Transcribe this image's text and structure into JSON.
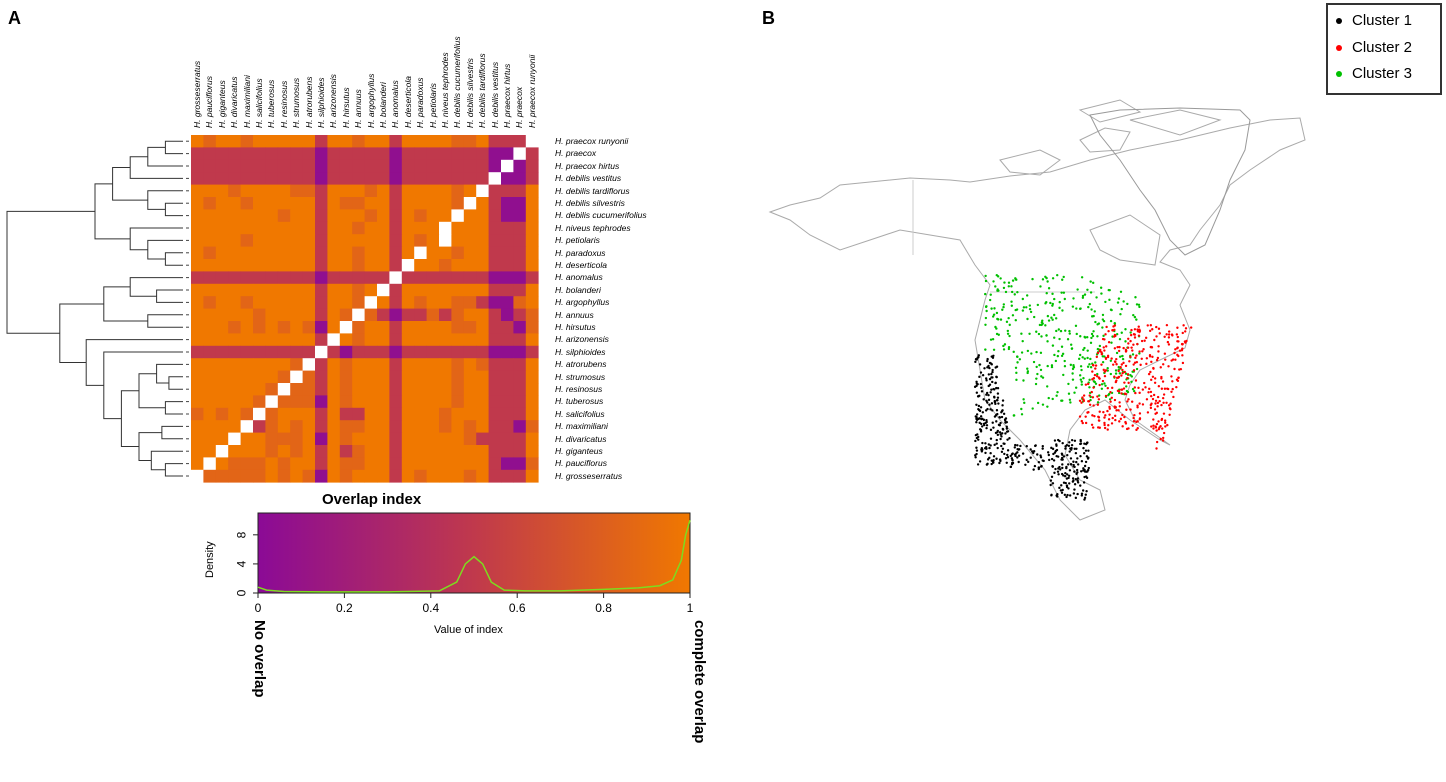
{
  "panel_a_label": "A",
  "panel_b_label": "B",
  "chart_data": [
    {
      "type": "heatmap",
      "title": "Overlap index",
      "columns": [
        "H. grosseserratus",
        "H. pauciflorus",
        "H. giganteus",
        "H. divaricatus",
        "H. maximiliani",
        "H. salicifolius",
        "H. tuberosus",
        "H. resinosus",
        "H. strumosus",
        "H. atrorubens",
        "H. silphioides",
        "H. arizonensis",
        "H. hirsutus",
        "H. annuus",
        "H. argophyllus",
        "H. bolanderi",
        "H. anomalus",
        "H. deserticola",
        "H. paradoxus",
        "H. petiolaris",
        "H. niveus tephrodes",
        "H. debilis cucumerifolius",
        "H. debilis silvestris",
        "H. debilis tardiflorus",
        "H. debilis vestitus",
        "H. praecox hirtus",
        "H. praecox",
        "H. praecox runyonii"
      ],
      "rows": [
        "H. praecox runyonii",
        "H. praecox",
        "H. praecox hirtus",
        "H. debilis vestitus",
        "H. debilis tardiflorus",
        "H. debilis silvestris",
        "H. debilis cucumerifolius",
        "H. niveus tephrodes",
        "H. petiolaris",
        "H. paradoxus",
        "H. deserticola",
        "H. anomalus",
        "H. bolanderi",
        "H. argophyllus",
        "H. annuus",
        "H. hirsutus",
        "H. arizonensis",
        "H. silphioides",
        "H. atrorubens",
        "H. strumosus",
        "H. resinosus",
        "H. tuberosus",
        "H. salicifolius",
        "H. maximiliani",
        "H. divaricatus",
        "H. giganteus",
        "H. pauciflorus",
        "H. grosseserratus"
      ],
      "value_codes": {
        "O": 1.0,
        "o": 0.85,
        "R": 0.5,
        "P": 0.05,
        "W": null
      },
      "matrix": [
        "OoOOoOOOOOROOoOOROOOOooORRRW",
        "RRRRRRRRRRPRRRRRPRRRRRRRPPWR",
        "RRRRRRRRRRPRRRRRPRRRRRRRPWPR",
        "RRRRRRRRRRPRRRRRPRRRRRRRWPPR",
        "OOOoOOOOooROOOoOROOOOoOWRRRO",
        "OoOOoOOOOOROooOOROOOOoWORPPO",
        "OOOOOOOoOOROOOoOROoOOWOORPPO",
        "OOOOOOOOOOROOoOOROOOWOOORRRO",
        "OOOOoOOOOOROOOOOROoOWOOORRRO",
        "OoOOOOOOOOROOoOOROWOOoOORRRO",
        "OOOOOOOOOOROOoOORWOOoOOORRRO",
        "RRRRRRRRRRPRRRRRWRRRRRRRPPPR",
        "OOOOOOOOOOROOoOWROOOOOOORRRO",
        "OoOOoOOOOOROOoWOROoOOooRPPoO",
        "OOOOOoOOOOROoWoRPRRoRoOORPRo",
        "OOOoOoOoOoPOWoOOROOOOooORRPo",
        "OOOOOOOOOORWOoOOROOOOOOORRRO",
        "RRRRRRRRRRWRPRRRPRRRRRRRPPPR",
        "OOOOOOOOoWROoOOOROOOOoOoRRRO",
        "OOOOOOOoWoROoOOOROOOOoOORRRO",
        "OOOOOOoWooROoOOOROOOOoOORRRO",
        "OOOOOoWoooPOoOOOROOOOoOORRRO",
        "oOoOoWoOOORORROOROOOoOOORRRO",
        "OOOOWRoOoOROooOOROOOoOoORRPo",
        "OOOWOOoooOPOoOOOROOOOOoRRRRO",
        "OOWOOOoOoORORoOOROOOOOOORRRO",
        "OWOoooOoOOROooOOROOOOOOORPPo",
        "WoooooOoOoPOoOOOROoOOOoORRRO"
      ],
      "color_low": "#8b0a96",
      "color_mid": "#c0394c",
      "color_high": "#f07800"
    },
    {
      "type": "line",
      "title": "Overlap index",
      "xlabel": "Value of index",
      "ylabel": "Density",
      "xlim": [
        0,
        1
      ],
      "ylim": [
        0,
        11
      ],
      "xticks": [
        "0",
        "0.2",
        "0.4",
        "0.6",
        "0.8",
        "1"
      ],
      "yticks": [
        "0",
        "4",
        "8"
      ],
      "low_annotation": "No overlap",
      "high_annotation": "complete overlap",
      "curve_color": "#7ddc1f",
      "x": [
        0,
        0.02,
        0.06,
        0.15,
        0.3,
        0.42,
        0.46,
        0.48,
        0.5,
        0.52,
        0.54,
        0.57,
        0.62,
        0.7,
        0.8,
        0.88,
        0.93,
        0.96,
        0.98,
        0.99,
        1.0
      ],
      "y": [
        0.8,
        0.4,
        0.2,
        0.15,
        0.15,
        0.3,
        1.5,
        4.0,
        5.0,
        4.0,
        1.5,
        0.4,
        0.3,
        0.3,
        0.5,
        0.7,
        1.0,
        1.8,
        4.5,
        8.0,
        10.0
      ]
    },
    {
      "type": "scatter",
      "legend": [
        {
          "label": "Cluster 1",
          "color": "#000000"
        },
        {
          "label": "Cluster 2",
          "color": "#ff0000"
        },
        {
          "label": "Cluster 3",
          "color": "#00c000"
        }
      ],
      "legend_position": "top-right"
    }
  ]
}
